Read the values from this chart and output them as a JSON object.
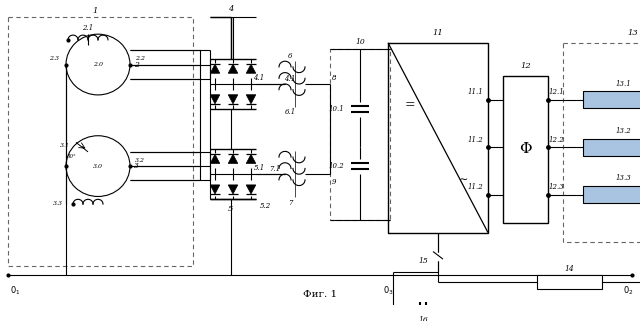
{
  "bg_color": "#ffffff",
  "line_color": "#000000",
  "dashed_color": "#666666",
  "blue_fill": "#a8c4e0",
  "white_fill": "#ffffff",
  "title": "Фиг. 1"
}
